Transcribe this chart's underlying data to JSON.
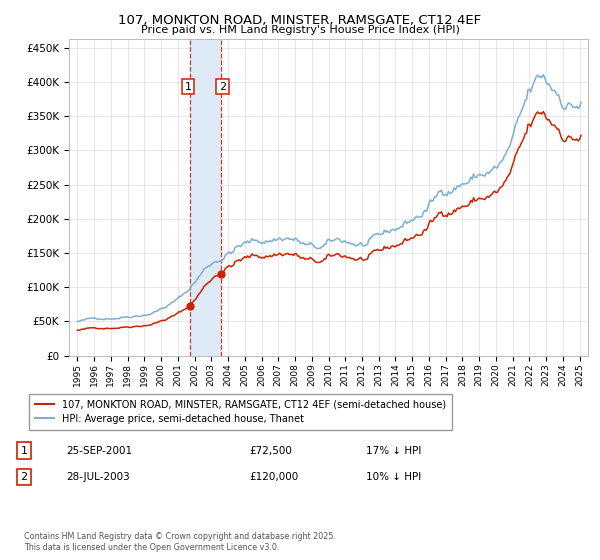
{
  "title": "107, MONKTON ROAD, MINSTER, RAMSGATE, CT12 4EF",
  "subtitle": "Price paid vs. HM Land Registry's House Price Index (HPI)",
  "legend_line1": "107, MONKTON ROAD, MINSTER, RAMSGATE, CT12 4EF (semi-detached house)",
  "legend_line2": "HPI: Average price, semi-detached house, Thanet",
  "transaction1_date": "25-SEP-2001",
  "transaction1_price": "£72,500",
  "transaction1_hpi": "17% ↓ HPI",
  "transaction1_year": 2001.73,
  "transaction2_date": "28-JUL-2003",
  "transaction2_price": "£120,000",
  "transaction2_hpi": "10% ↓ HPI",
  "transaction2_year": 2003.55,
  "price_t1": 72500,
  "price_t2": 120000,
  "footnote": "Contains HM Land Registry data © Crown copyright and database right 2025.\nThis data is licensed under the Open Government Licence v3.0.",
  "hpi_color": "#7bafd4",
  "price_color": "#cc2200",
  "vspan_color": "#deeaf5",
  "vline_color": "#cc2200",
  "ylim": [
    0,
    462500
  ],
  "xlim_start": 1994.5,
  "xlim_end": 2025.5
}
